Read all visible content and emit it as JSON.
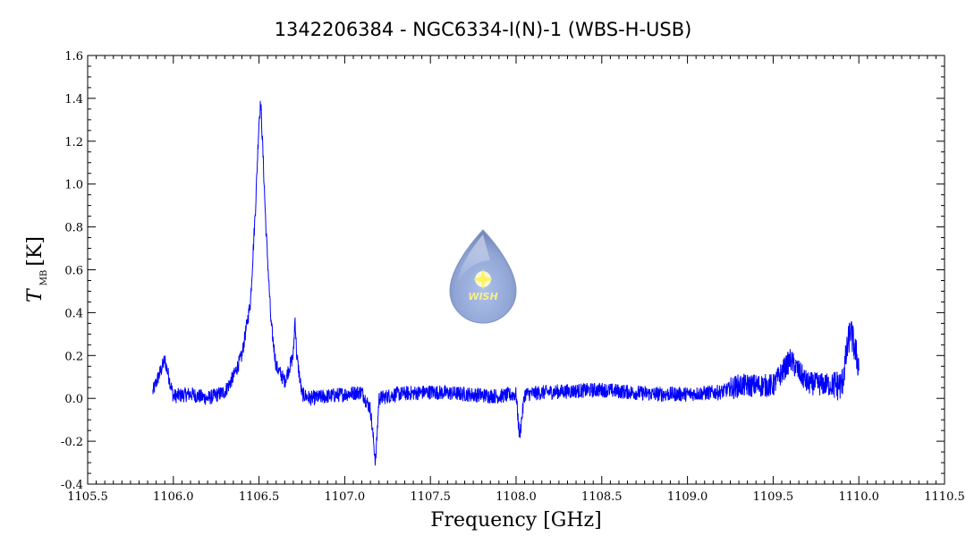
{
  "chart_data": {
    "type": "line",
    "title": "1342206384 - NGC6334-I(N)-1 (WBS-H-USB)",
    "xlabel": "Frequency [GHz]",
    "ylabel_main": "T",
    "ylabel_sub": "MB",
    "ylabel_unit": "[K]",
    "xlim": [
      1105.5,
      1110.5
    ],
    "ylim": [
      -0.4,
      1.6
    ],
    "xticks": [
      1105.5,
      1106.0,
      1106.5,
      1107.0,
      1107.5,
      1108.0,
      1108.5,
      1109.0,
      1109.5,
      1110.0,
      1110.5
    ],
    "xtick_labels": [
      "1105.5",
      "1106.0",
      "1106.5",
      "1107.0",
      "1107.5",
      "1108.0",
      "1108.5",
      "1109.0",
      "1109.5",
      "1110.0",
      "1110.5"
    ],
    "yticks": [
      -0.4,
      -0.2,
      0.0,
      0.2,
      0.4,
      0.6,
      0.8,
      1.0,
      1.2,
      1.4,
      1.6
    ],
    "ytick_labels": [
      "-0.4",
      "-0.2",
      "0.0",
      "0.2",
      "0.4",
      "0.6",
      "0.8",
      "1.0",
      "1.2",
      "1.4",
      "1.6"
    ],
    "grid": false,
    "series": [
      {
        "color": "#0000ff",
        "x": [
          1105.88,
          1105.95,
          1106.0,
          1106.1,
          1106.2,
          1106.3,
          1106.35,
          1106.4,
          1106.45,
          1106.48,
          1106.5,
          1106.51,
          1106.52,
          1106.54,
          1106.57,
          1106.6,
          1106.65,
          1106.7,
          1106.71,
          1106.72,
          1106.75,
          1106.8,
          1106.9,
          1107.0,
          1107.1,
          1107.15,
          1107.18,
          1107.2,
          1107.3,
          1107.5,
          1107.7,
          1107.9,
          1108.0,
          1108.02,
          1108.05,
          1108.2,
          1108.5,
          1108.8,
          1109.0,
          1109.2,
          1109.3,
          1109.5,
          1109.6,
          1109.7,
          1109.9,
          1109.95,
          1110.0
        ],
        "y": [
          0.03,
          0.18,
          0.01,
          0.02,
          0.0,
          0.03,
          0.1,
          0.2,
          0.45,
          0.9,
          1.3,
          1.38,
          1.2,
          0.8,
          0.35,
          0.15,
          0.08,
          0.2,
          0.38,
          0.2,
          0.02,
          0.0,
          0.01,
          0.02,
          0.03,
          -0.05,
          -0.3,
          0.0,
          0.02,
          0.03,
          0.02,
          0.01,
          0.02,
          -0.18,
          0.02,
          0.03,
          0.04,
          0.02,
          0.02,
          0.03,
          0.06,
          0.06,
          0.18,
          0.07,
          0.06,
          0.32,
          0.15
        ]
      }
    ]
  },
  "logo": {
    "text": "WISH"
  }
}
